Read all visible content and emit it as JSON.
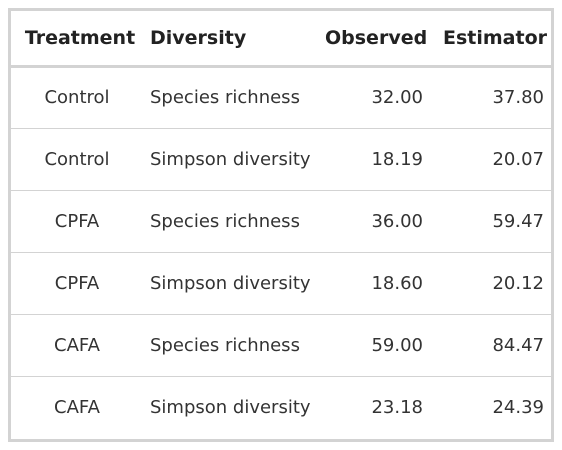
{
  "table": {
    "headers": {
      "treatment": "Treatment",
      "diversity": "Diversity",
      "observed": "Observed",
      "estimator": "Estimator"
    },
    "rows": [
      {
        "treatment": "Control",
        "diversity": "Species richness",
        "observed": "32.00",
        "estimator": "37.80"
      },
      {
        "treatment": "Control",
        "diversity": "Simpson diversity",
        "observed": "18.19",
        "estimator": "20.07"
      },
      {
        "treatment": "CPFA",
        "diversity": "Species richness",
        "observed": "36.00",
        "estimator": "59.47"
      },
      {
        "treatment": "CPFA",
        "diversity": "Simpson diversity",
        "observed": "18.60",
        "estimator": "20.12"
      },
      {
        "treatment": "CAFA",
        "diversity": "Species richness",
        "observed": "59.00",
        "estimator": "84.47"
      },
      {
        "treatment": "CAFA",
        "diversity": "Simpson diversity",
        "observed": "23.18",
        "estimator": "24.39"
      }
    ]
  },
  "colors": {
    "border": "#d3d3d3",
    "text": "#333333",
    "header_text": "#222222"
  }
}
